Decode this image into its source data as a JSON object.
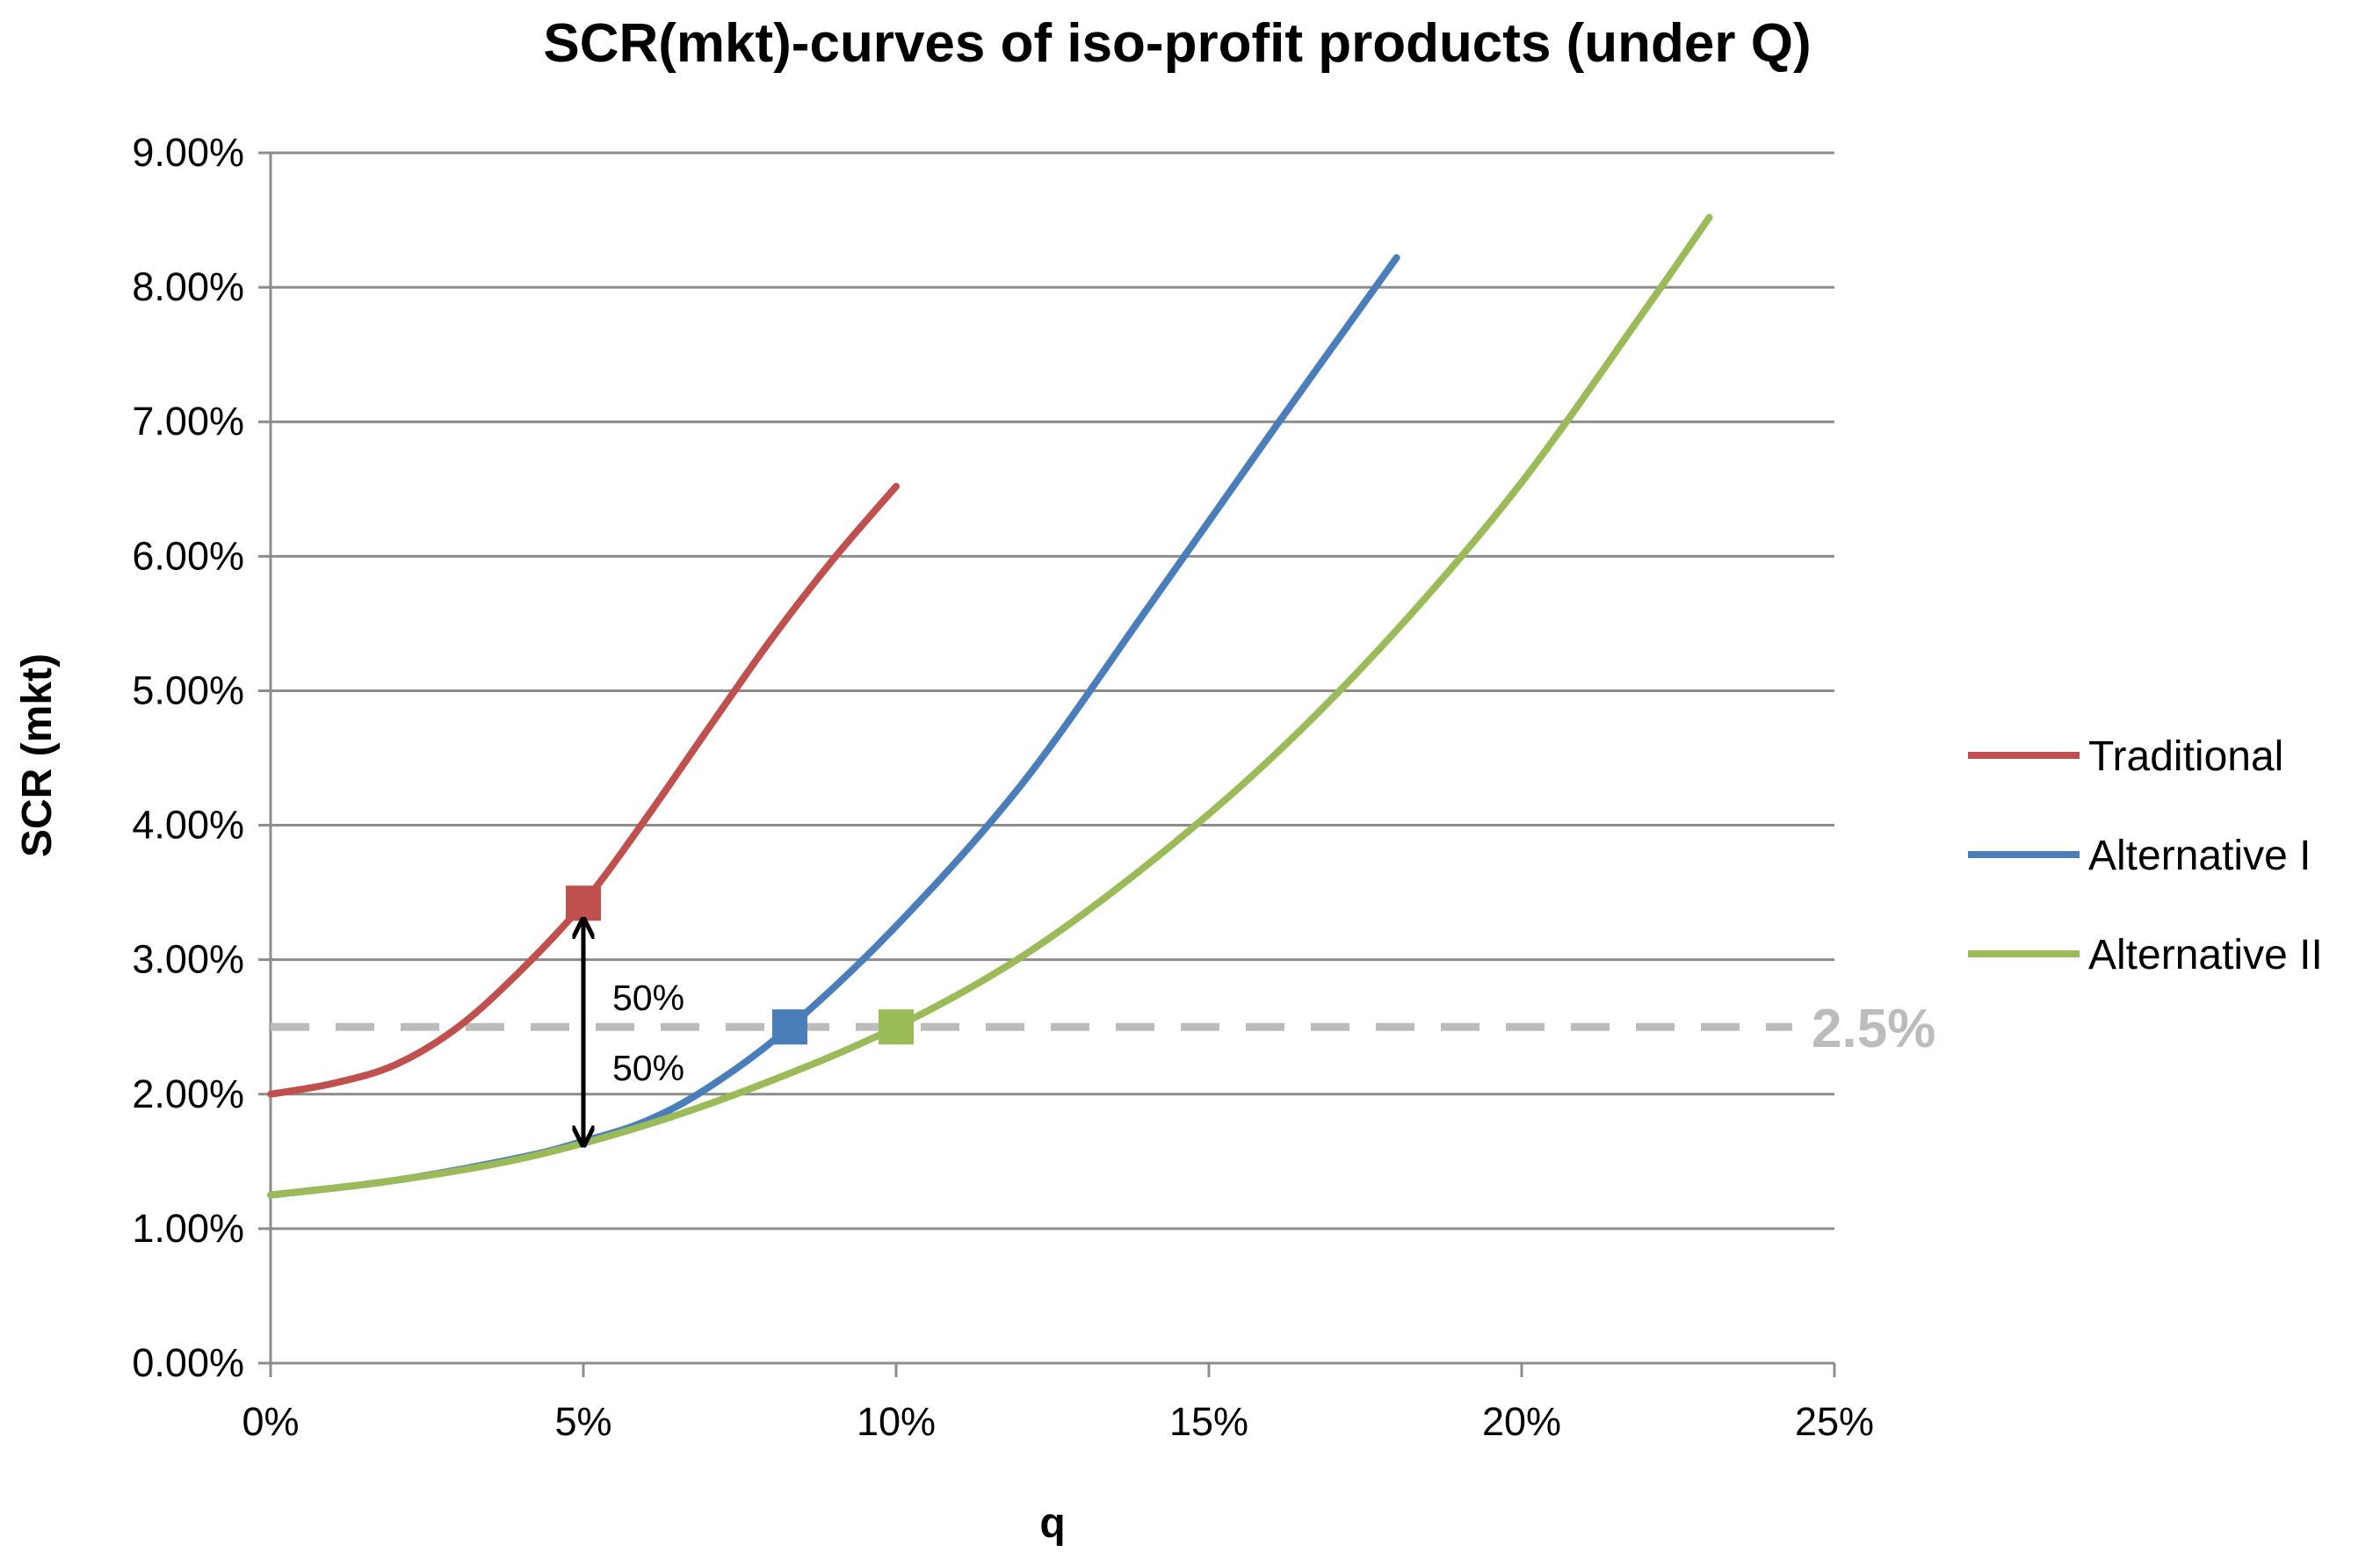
{
  "chart_data": {
    "type": "line",
    "title": "SCR(mkt)-curves of iso-profit products (under Q)",
    "xlabel": "q",
    "ylabel": "SCR (mkt)",
    "xlim": [
      0,
      25
    ],
    "ylim": [
      0,
      9
    ],
    "x_ticks": [
      "0%",
      "5%",
      "10%",
      "15%",
      "20%",
      "25%"
    ],
    "y_ticks": [
      "0.00%",
      "1.00%",
      "2.00%",
      "3.00%",
      "4.00%",
      "5.00%",
      "6.00%",
      "7.00%",
      "8.00%",
      "9.00%"
    ],
    "grid": "horizontal",
    "legend_position": "right",
    "series": [
      {
        "name": "Traditional",
        "color": "#c0504d",
        "x": [
          0,
          1,
          2,
          3,
          4,
          5,
          6,
          7,
          8,
          9,
          10
        ],
        "y": [
          2.0,
          2.08,
          2.22,
          2.5,
          2.92,
          3.42,
          4.05,
          4.72,
          5.38,
          5.98,
          6.52
        ],
        "marker": {
          "x": 5,
          "y": 3.42
        }
      },
      {
        "name": "Alternative I",
        "color": "#4a7ebb",
        "x": [
          0,
          2,
          4,
          5,
          6,
          7,
          8.3,
          10,
          12,
          14,
          16,
          18
        ],
        "y": [
          1.25,
          1.36,
          1.53,
          1.65,
          1.8,
          2.05,
          2.5,
          3.25,
          4.3,
          5.6,
          6.92,
          8.22
        ],
        "marker": {
          "x": 8.3,
          "y": 2.5
        }
      },
      {
        "name": "Alternative II",
        "color": "#9bbb59",
        "x": [
          0,
          2,
          4,
          6,
          8,
          10,
          12,
          14,
          16,
          18,
          20,
          22,
          23
        ],
        "y": [
          1.25,
          1.36,
          1.52,
          1.77,
          2.1,
          2.5,
          3.02,
          3.7,
          4.5,
          5.45,
          6.55,
          7.85,
          8.52
        ],
        "marker": {
          "x": 10,
          "y": 2.5
        }
      }
    ],
    "reference_line": {
      "y": 2.5,
      "label": "2.5%",
      "color": "#bcbcbc",
      "style": "dashed"
    },
    "annotation": {
      "x": 5,
      "y_top": 3.3,
      "y_bottom": 1.62,
      "labels": [
        "50%",
        "50%"
      ]
    }
  }
}
